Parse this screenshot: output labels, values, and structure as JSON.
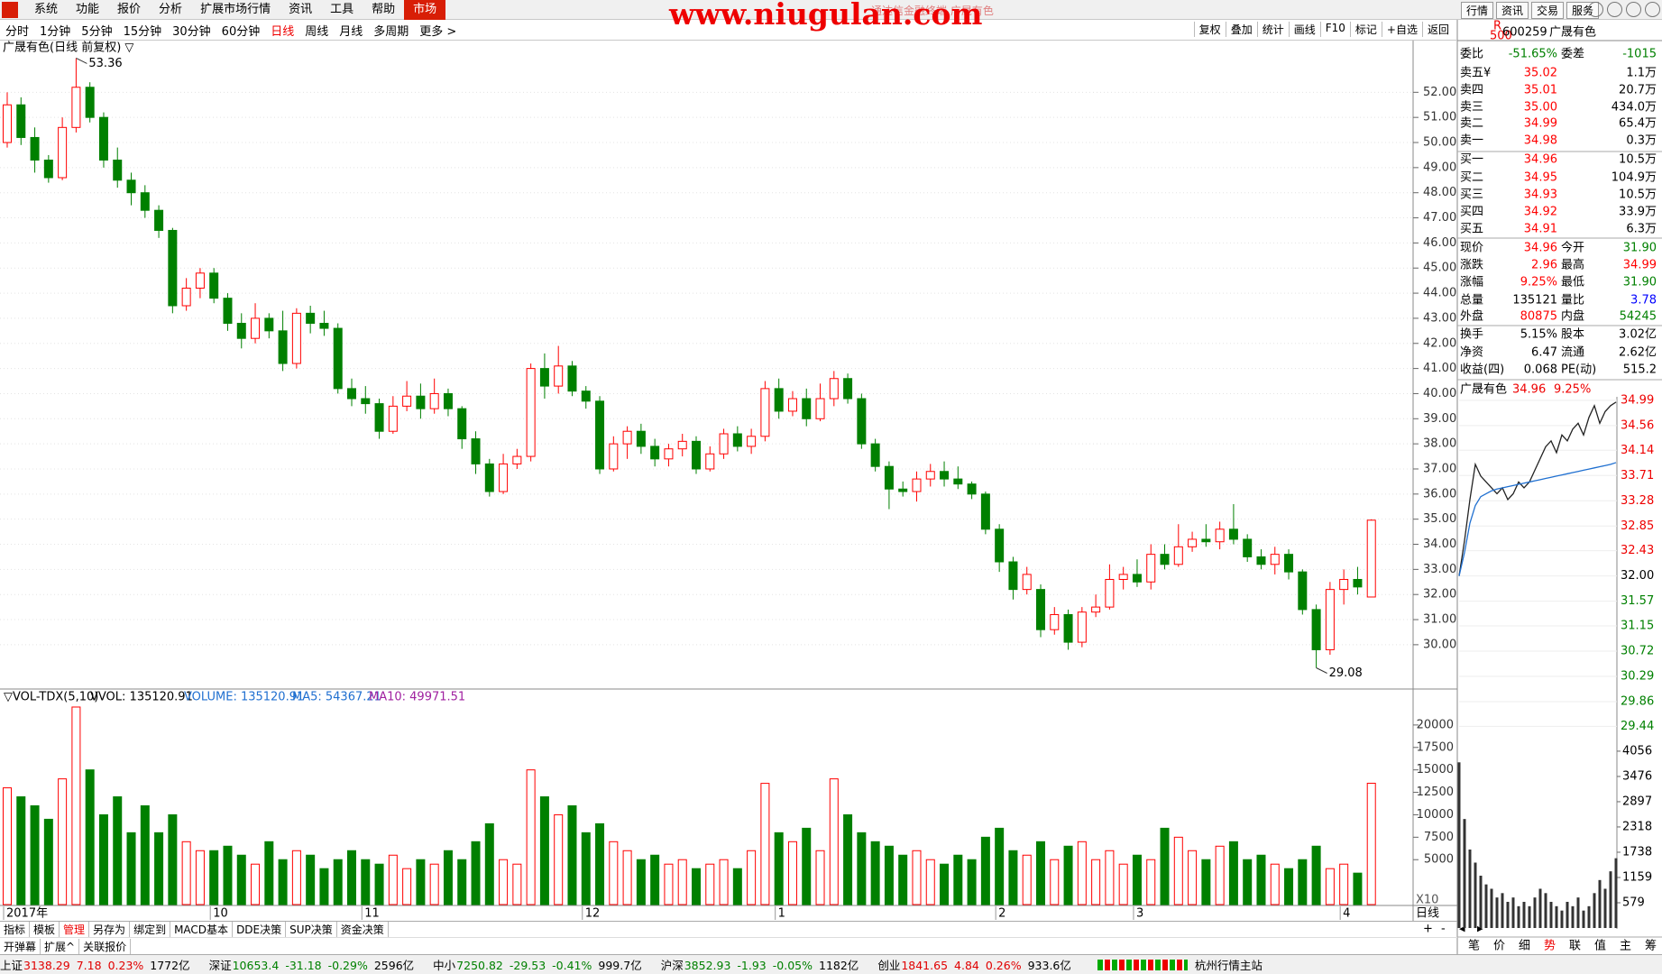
{
  "title_bar": {
    "watermark": "www.niugulan.com",
    "caption": "通达信金融终端 广晟有色"
  },
  "menu": {
    "items": [
      "系统",
      "功能",
      "报价",
      "分析",
      "扩展市场行情",
      "资讯",
      "工具",
      "帮助",
      "市场"
    ],
    "active": 8
  },
  "top_right_menu": [
    "行情",
    "资讯",
    "交易",
    "服务"
  ],
  "periods": {
    "items": [
      "分时",
      "1分钟",
      "5分钟",
      "15分钟",
      "30分钟",
      "60分钟",
      "日线",
      "周线",
      "月线",
      "多周期",
      "更多 >"
    ],
    "active": 6
  },
  "tools": [
    "复权",
    "叠加",
    "统计",
    "画线",
    "F10",
    "标记",
    "+自选",
    "返回"
  ],
  "chart_data": {
    "type": "candlestick",
    "title": "广晟有色(日线 前复权) ▽",
    "up_color": "#ff0000",
    "down_color": "#008000",
    "categories": [
      "2017年",
      null,
      null,
      null,
      null,
      null,
      null,
      null,
      null,
      null,
      null,
      null,
      null,
      null,
      null,
      "10",
      null,
      null,
      null,
      null,
      null,
      null,
      null,
      null,
      null,
      null,
      "11",
      null,
      null,
      null,
      null,
      null,
      null,
      null,
      null,
      null,
      null,
      null,
      null,
      null,
      null,
      null,
      "12",
      null,
      null,
      null,
      null,
      null,
      null,
      null,
      null,
      null,
      null,
      null,
      null,
      null,
      "1",
      null,
      null,
      null,
      null,
      null,
      null,
      null,
      null,
      null,
      null,
      null,
      null,
      null,
      null,
      null,
      "2",
      null,
      null,
      null,
      null,
      null,
      null,
      null,
      null,
      null,
      "3",
      null,
      null,
      null,
      null,
      null,
      null,
      null,
      null,
      null,
      null,
      null,
      null,
      null,
      null,
      "4",
      null,
      null
    ],
    "candles": [
      [
        50,
        52,
        49.8,
        51.5
      ],
      [
        51.5,
        51.8,
        49.9,
        50.2
      ],
      [
        50.2,
        50.6,
        48.8,
        49.3
      ],
      [
        49.3,
        49.5,
        48.4,
        48.6
      ],
      [
        48.6,
        51,
        48.5,
        50.6
      ],
      [
        50.6,
        53.36,
        50.4,
        52.2
      ],
      [
        52.2,
        52.4,
        50.8,
        51
      ],
      [
        51,
        51.2,
        49,
        49.3
      ],
      [
        49.3,
        49.8,
        48.2,
        48.5
      ],
      [
        48.5,
        48.8,
        47.5,
        48
      ],
      [
        48,
        48.3,
        47,
        47.3
      ],
      [
        47.3,
        47.5,
        46.2,
        46.5
      ],
      [
        46.5,
        46.6,
        43.2,
        43.5
      ],
      [
        43.5,
        44.6,
        43.3,
        44.2
      ],
      [
        44.2,
        45,
        43.8,
        44.8
      ],
      [
        44.8,
        45,
        43.6,
        43.8
      ],
      [
        43.8,
        44,
        42.5,
        42.8
      ],
      [
        42.8,
        43.2,
        41.8,
        42.2
      ],
      [
        42.2,
        43.6,
        42,
        43
      ],
      [
        43,
        43.2,
        42.2,
        42.5
      ],
      [
        42.5,
        43.3,
        40.9,
        41.2
      ],
      [
        41.2,
        43.4,
        41,
        43.2
      ],
      [
        43.2,
        43.5,
        42.4,
        42.8
      ],
      [
        42.8,
        43.3,
        42.3,
        42.6
      ],
      [
        42.6,
        42.8,
        40,
        40.2
      ],
      [
        40.2,
        40.6,
        39.5,
        39.8
      ],
      [
        39.8,
        40.3,
        39.2,
        39.6
      ],
      [
        39.6,
        39.8,
        38.2,
        38.5
      ],
      [
        38.5,
        39.9,
        38.4,
        39.5
      ],
      [
        39.5,
        40.5,
        39.3,
        39.9
      ],
      [
        39.9,
        40.4,
        39,
        39.4
      ],
      [
        39.4,
        40.6,
        39.2,
        40
      ],
      [
        40,
        40.2,
        39.1,
        39.4
      ],
      [
        39.4,
        39.5,
        37.8,
        38.2
      ],
      [
        38.2,
        38.5,
        36.8,
        37.2
      ],
      [
        37.2,
        37.4,
        35.9,
        36.1
      ],
      [
        36.1,
        37.6,
        36,
        37.2
      ],
      [
        37.2,
        37.8,
        37,
        37.5
      ],
      [
        37.5,
        41.2,
        37.3,
        41
      ],
      [
        41,
        41.6,
        39.8,
        40.3
      ],
      [
        40.3,
        41.9,
        40,
        41.1
      ],
      [
        41.1,
        41.3,
        39.9,
        40.1
      ],
      [
        40.1,
        40.3,
        39.4,
        39.7
      ],
      [
        39.7,
        39.9,
        36.8,
        37
      ],
      [
        37,
        38.3,
        36.9,
        38
      ],
      [
        38,
        38.7,
        37.4,
        38.5
      ],
      [
        38.5,
        38.8,
        37.6,
        37.9
      ],
      [
        37.9,
        38.2,
        37.1,
        37.4
      ],
      [
        37.4,
        38,
        37.1,
        37.8
      ],
      [
        37.8,
        38.4,
        37.5,
        38.1
      ],
      [
        38.1,
        38.3,
        36.8,
        37
      ],
      [
        37,
        37.9,
        36.9,
        37.6
      ],
      [
        37.6,
        38.6,
        37.4,
        38.4
      ],
      [
        38.4,
        38.7,
        37.7,
        37.9
      ],
      [
        37.9,
        38.6,
        37.6,
        38.3
      ],
      [
        38.3,
        40.5,
        38.1,
        40.2
      ],
      [
        40.2,
        40.6,
        39,
        39.3
      ],
      [
        39.3,
        40.1,
        39.1,
        39.8
      ],
      [
        39.8,
        40.2,
        38.7,
        39
      ],
      [
        39,
        40.4,
        38.9,
        39.8
      ],
      [
        39.8,
        40.9,
        39.5,
        40.6
      ],
      [
        40.6,
        40.8,
        39.6,
        39.8
      ],
      [
        39.8,
        40,
        37.8,
        38
      ],
      [
        38,
        38.2,
        36.9,
        37.1
      ],
      [
        37.1,
        37.3,
        35.4,
        36.2
      ],
      [
        36.2,
        36.5,
        35.9,
        36.1
      ],
      [
        36.1,
        36.9,
        35.7,
        36.6
      ],
      [
        36.6,
        37.2,
        36.3,
        36.9
      ],
      [
        36.9,
        37.3,
        36.3,
        36.6
      ],
      [
        36.6,
        37.1,
        36.2,
        36.4
      ],
      [
        36.4,
        36.5,
        35.8,
        36
      ],
      [
        36,
        36.1,
        34.4,
        34.6
      ],
      [
        34.6,
        34.8,
        32.9,
        33.3
      ],
      [
        33.3,
        33.5,
        31.8,
        32.2
      ],
      [
        32.2,
        33.1,
        32,
        32.8
      ],
      [
        32.2,
        32.4,
        30.3,
        30.6
      ],
      [
        30.6,
        31.5,
        30.4,
        31.2
      ],
      [
        31.2,
        31.4,
        29.8,
        30.1
      ],
      [
        30.1,
        31.5,
        29.9,
        31.3
      ],
      [
        31.3,
        32,
        31.1,
        31.5
      ],
      [
        31.5,
        33.2,
        31.4,
        32.6
      ],
      [
        32.6,
        33.1,
        32.2,
        32.8
      ],
      [
        32.8,
        33.4,
        32.3,
        32.5
      ],
      [
        32.5,
        34,
        32.2,
        33.6
      ],
      [
        33.6,
        34,
        33,
        33.2
      ],
      [
        33.2,
        34.8,
        33.1,
        33.9
      ],
      [
        33.9,
        34.5,
        33.7,
        34.2
      ],
      [
        34.2,
        34.8,
        33.9,
        34.1
      ],
      [
        34.1,
        34.9,
        33.8,
        34.6
      ],
      [
        34.6,
        35.6,
        34,
        34.2
      ],
      [
        34.2,
        34.4,
        33.3,
        33.5
      ],
      [
        33.5,
        33.8,
        33,
        33.2
      ],
      [
        33.2,
        33.9,
        32.8,
        33.6
      ],
      [
        33.6,
        33.8,
        32.6,
        32.9
      ],
      [
        32.9,
        33,
        31.2,
        31.4
      ],
      [
        31.4,
        31.6,
        29.08,
        29.8
      ],
      [
        29.8,
        32.5,
        29.6,
        32.2
      ],
      [
        32.2,
        33,
        31.6,
        32.6
      ],
      [
        32.6,
        33.1,
        32,
        32.3
      ],
      [
        31.9,
        34.99,
        31.9,
        34.96
      ]
    ],
    "ylim": [
      28.2,
      53.7
    ],
    "yticks": [
      {
        "value": 30,
        "label": "30.00"
      },
      {
        "value": 31,
        "label": "31.00"
      },
      {
        "value": 32,
        "label": "32.00"
      },
      {
        "value": 33,
        "label": "33.00"
      },
      {
        "value": 34,
        "label": "34.00"
      },
      {
        "value": 35,
        "label": "35.00"
      },
      {
        "value": 36,
        "label": "36.00"
      },
      {
        "value": 37,
        "label": "37.00"
      },
      {
        "value": 38,
        "label": "38.00"
      },
      {
        "value": 39,
        "label": "39.00"
      },
      {
        "value": 40,
        "label": "40.00"
      },
      {
        "value": 41,
        "label": "41.00"
      },
      {
        "value": 42,
        "label": "42.00"
      },
      {
        "value": 43,
        "label": "43.00"
      },
      {
        "value": 44,
        "label": "44.00"
      },
      {
        "value": 45,
        "label": "45.00"
      },
      {
        "value": 46,
        "label": "46.00"
      },
      {
        "value": 47,
        "label": "47.00"
      },
      {
        "value": 48,
        "label": "48.00"
      },
      {
        "value": 49,
        "label": "49.00"
      },
      {
        "value": 50,
        "label": "50.00"
      },
      {
        "value": 51,
        "label": "51.00"
      },
      {
        "value": 52,
        "label": "52.00"
      }
    ],
    "volume_header": [
      {
        "text": "▽VOL-TDX(5,10)",
        "color": "#000000"
      },
      {
        "text": "VVOL: 135120.91",
        "color": "#000000"
      },
      {
        "text": "VOLUME: 135120.91",
        "color": "#1f6fd0"
      },
      {
        "text": "MA5: 54367.21",
        "color": "#1f6fd0"
      },
      {
        "text": "MA10: 49971.51",
        "color": "#a020a0"
      }
    ],
    "volume": [
      13000,
      12000,
      11000,
      9500,
      14000,
      22000,
      15000,
      10000,
      12000,
      8000,
      11000,
      8000,
      10000,
      7000,
      6000,
      6000,
      6500,
      5500,
      4500,
      7000,
      5000,
      6000,
      5500,
      4000,
      5000,
      6000,
      5000,
      4500,
      5500,
      4000,
      5000,
      4500,
      6000,
      5000,
      7000,
      9000,
      5000,
      4500,
      15000,
      12000,
      10000,
      11000,
      8000,
      9000,
      7000,
      6000,
      5000,
      5500,
      4500,
      5000,
      4000,
      4500,
      5000,
      4000,
      6000,
      13500,
      8000,
      7000,
      8500,
      6000,
      14000,
      10000,
      8000,
      7000,
      6500,
      5500,
      6000,
      5000,
      4500,
      5500,
      5000,
      7500,
      8500,
      6000,
      5500,
      7000,
      5000,
      6500,
      7000,
      5000,
      6000,
      4500,
      5500,
      5000,
      8500,
      7500,
      6000,
      5000,
      6500,
      7000,
      5000,
      5500,
      4500,
      4000,
      5000,
      6500,
      4000,
      4500,
      3500,
      13512.09
    ],
    "vlim": [
      0,
      22500
    ],
    "vticks": [
      5000,
      7500,
      10000,
      12500,
      15000,
      17500,
      20000
    ],
    "volume_unit": "X10",
    "zoom": [
      "+",
      "-",
      "◂",
      "▸"
    ]
  },
  "quote": {
    "badge": [
      "R",
      "500"
    ],
    "code": "600259",
    "name": "广晟有色",
    "ratio": {
      "label": "委比",
      "value": "-51.65%",
      "label2": "委差",
      "value2": "-1015",
      "colors": [
        "#008000",
        "#008000"
      ]
    },
    "asks": [
      {
        "label": "卖五¥",
        "price": "35.02",
        "volume": "1.1万"
      },
      {
        "label": "卖四",
        "price": "35.01",
        "volume": "20.7万"
      },
      {
        "label": "卖三",
        "price": "35.00",
        "volume": "434.0万"
      },
      {
        "label": "卖二",
        "price": "34.99",
        "volume": "65.4万"
      },
      {
        "label": "卖一",
        "price": "34.98",
        "volume": "0.3万"
      }
    ],
    "bids": [
      {
        "label": "买一",
        "price": "34.96",
        "volume": "10.5万"
      },
      {
        "label": "买二",
        "price": "34.95",
        "volume": "104.9万"
      },
      {
        "label": "买三",
        "price": "34.93",
        "volume": "10.5万"
      },
      {
        "label": "买四",
        "price": "34.92",
        "volume": "33.9万"
      },
      {
        "label": "买五",
        "price": "34.91",
        "volume": "6.3万"
      }
    ],
    "price_color": "#ff0000",
    "stats": [
      {
        "label": "现价",
        "value": "34.96",
        "label2": "今开",
        "value2": "31.90",
        "colors": [
          "#ff0000",
          "#008000"
        ]
      },
      {
        "label": "涨跌",
        "value": "2.96",
        "label2": "最高",
        "value2": "34.99",
        "colors": [
          "#ff0000",
          "#ff0000"
        ]
      },
      {
        "label": "涨幅",
        "value": "9.25%",
        "label2": "最低",
        "value2": "31.90",
        "colors": [
          "#ff0000",
          "#008000"
        ]
      },
      {
        "label": "总量",
        "value": "135121",
        "label2": "量比",
        "value2": "3.78",
        "colors": [
          "#000000",
          "#0000ff"
        ]
      },
      {
        "label": "外盘",
        "value": "80875",
        "label2": "内盘",
        "value2": "54245",
        "colors": [
          "#ff0000",
          "#008000"
        ]
      },
      {
        "label": "换手",
        "value": "5.15%",
        "label2": "股本",
        "value2": "3.02亿",
        "colors": [
          "#000000",
          "#000000"
        ]
      },
      {
        "label": "净资",
        "value": "6.47",
        "label2": "流通",
        "value2": "2.62亿",
        "colors": [
          "#000000",
          "#000000"
        ]
      },
      {
        "label": "收益(四)",
        "value": "0.068",
        "label2": "PE(动)",
        "value2": "515.2",
        "colors": [
          "#000000",
          "#000000"
        ]
      }
    ]
  },
  "intraday": {
    "name": "广晟有色",
    "price": "34.96",
    "pct": "9.25%",
    "prices": [
      32.0,
      32.6,
      33.3,
      33.9,
      33.7,
      33.6,
      33.5,
      33.4,
      33.5,
      33.3,
      33.4,
      33.6,
      33.5,
      33.6,
      33.8,
      34.0,
      34.2,
      34.3,
      34.1,
      34.4,
      34.3,
      34.5,
      34.6,
      34.4,
      34.7,
      34.9,
      34.6,
      34.8,
      34.9,
      34.96
    ],
    "avg": [
      32.0,
      32.4,
      32.9,
      33.2,
      33.35,
      33.4,
      33.45,
      33.48,
      33.5,
      33.52,
      33.54,
      33.56,
      33.58,
      33.6,
      33.62,
      33.64,
      33.66,
      33.68,
      33.7,
      33.72,
      33.74,
      33.76,
      33.78,
      33.8,
      33.82,
      33.84,
      33.86,
      33.88,
      33.9,
      33.93
    ],
    "volume": [
      3800,
      2500,
      1800,
      1500,
      1200,
      1000,
      900,
      700,
      800,
      600,
      700,
      500,
      600,
      500,
      700,
      900,
      800,
      600,
      500,
      400,
      600,
      500,
      700,
      400,
      500,
      800,
      1100,
      900,
      1300,
      1600
    ],
    "ylim": [
      29.2,
      35.05
    ],
    "yticks": [
      34.99,
      34.56,
      34.14,
      33.71,
      33.28,
      32.85,
      32.43,
      {
        "value": 32,
        "label": "32.00"
      },
      31.57,
      31.15,
      30.72,
      30.29,
      29.86,
      29.44
    ],
    "vlim": [
      0,
      4220
    ],
    "vticks": [
      4056,
      3476,
      2897,
      2318,
      1738,
      1159,
      579
    ],
    "tabs": {
      "items": [
        "笔",
        "价",
        "细",
        "势",
        "联",
        "值",
        "主",
        "筹"
      ],
      "active": 3
    }
  },
  "tabs": {
    "items": [
      "指标",
      "模板",
      "管理",
      "另存为",
      "绑定到",
      "MACD基本",
      "DDE决策",
      "SUP决策",
      "资金决策"
    ],
    "active": 2
  },
  "tabs2": [
    "开弹幕",
    "扩展^",
    "关联报价"
  ],
  "status": [
    {
      "name": "上证",
      "value": "3138.29",
      "change": "7.18",
      "pct": "0.23%",
      "amount": "1772亿"
    },
    {
      "name": "深证",
      "value": "10653.4",
      "change": "-31.18",
      "pct": "-0.29%",
      "amount": "2596亿"
    },
    {
      "name": "中小",
      "value": "7250.82",
      "change": "-29.53",
      "pct": "-0.41%",
      "amount": "999.7亿"
    },
    {
      "name": "沪深",
      "value": "3852.93",
      "change": "-1.93",
      "pct": "-0.05%",
      "amount": "1182亿"
    },
    {
      "name": "创业",
      "value": "1841.65",
      "change": "4.84",
      "pct": "0.26%",
      "amount": "933.6亿"
    }
  ],
  "server": "杭州行情主站"
}
